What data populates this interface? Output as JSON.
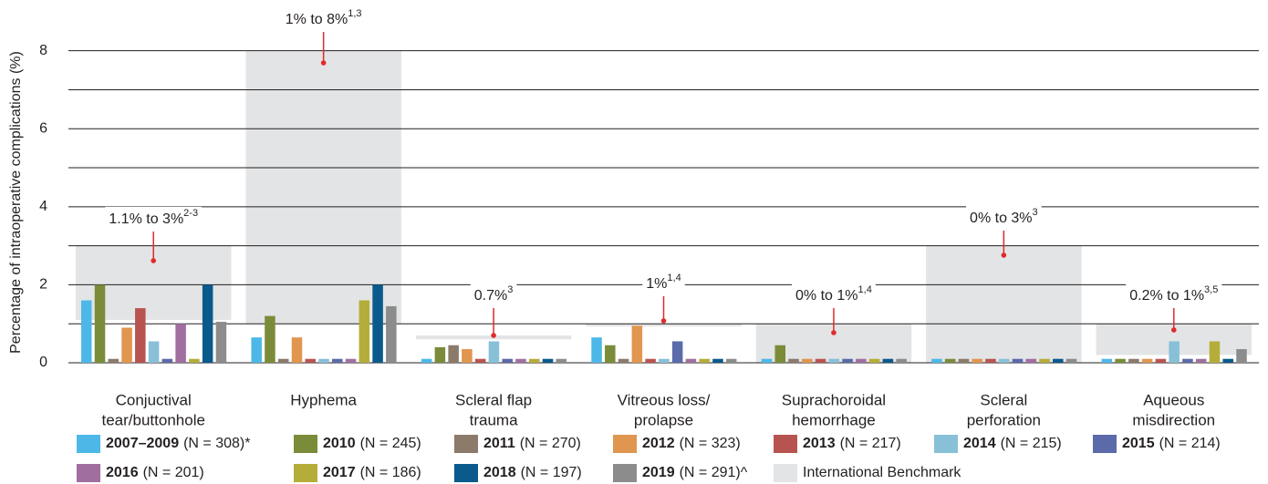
{
  "chart_data": {
    "type": "bar",
    "y_label": "Percentage of intraoperative complications (%)",
    "categories": [
      [
        "Conjuctival",
        "tear/buttonhole"
      ],
      [
        "Hyphema"
      ],
      [
        "Scleral flap",
        "trauma"
      ],
      [
        "Vitreous loss/",
        "prolapse"
      ],
      [
        "Suprachoroidal",
        "hemorrhage"
      ],
      [
        "Scleral",
        "perforation"
      ],
      [
        "Aqueous",
        "misdirection"
      ]
    ],
    "ylim": [
      0,
      8.6
    ],
    "yticks": [
      0,
      2,
      4,
      6,
      8
    ],
    "grid_lines": [
      0,
      1,
      2,
      3,
      4,
      5,
      6,
      7,
      8
    ],
    "grid": true,
    "benchmark": {
      "name": "International Benchmark",
      "color": "#e3e4e6",
      "low": [
        1.1,
        1,
        0.6,
        0.93,
        0,
        0,
        0.2
      ],
      "high": [
        3,
        8,
        0.7,
        1,
        1,
        3,
        1
      ],
      "labels": [
        "1.1% to 3%",
        "1% to 8%",
        "0.7%",
        "1%",
        "0% to 1%",
        "0% to 3%",
        "0.2% to 1%"
      ],
      "refs": [
        "2-3",
        "1,3",
        "3",
        "1,4",
        "1,4",
        "3",
        "3,5"
      ]
    },
    "series": [
      {
        "name": "2007–2009",
        "n_label": "(N = 308)*",
        "color": "#4db8e8",
        "values": [
          1.6,
          0.65,
          0.1,
          0.65,
          0.1,
          0.1,
          0.1
        ]
      },
      {
        "name": "2010",
        "n_label": "(N = 245)",
        "color": "#7a8c3a",
        "values": [
          2.0,
          1.2,
          0.4,
          0.45,
          0.45,
          0.1,
          0.1
        ]
      },
      {
        "name": "2011",
        "n_label": "(N = 270)",
        "color": "#8c7a6b",
        "values": [
          0.1,
          0.1,
          0.45,
          0.1,
          0.1,
          0.1,
          0.1
        ]
      },
      {
        "name": "2012",
        "n_label": "(N = 323)",
        "color": "#e0964e",
        "values": [
          0.9,
          0.65,
          0.35,
          0.95,
          0.1,
          0.1,
          0.1
        ]
      },
      {
        "name": "2013",
        "n_label": "(N = 217)",
        "color": "#b85450",
        "values": [
          1.4,
          0.1,
          0.1,
          0.1,
          0.1,
          0.1,
          0.1
        ]
      },
      {
        "name": "2014",
        "n_label": "(N = 215)",
        "color": "#88c0d8",
        "values": [
          0.55,
          0.1,
          0.55,
          0.1,
          0.1,
          0.1,
          0.55
        ]
      },
      {
        "name": "2015",
        "n_label": "(N = 214)",
        "color": "#5b6aa8",
        "values": [
          0.1,
          0.1,
          0.1,
          0.55,
          0.1,
          0.1,
          0.1
        ]
      },
      {
        "name": "2016",
        "n_label": "(N = 201)",
        "color": "#a06fa0",
        "values": [
          1.0,
          0.1,
          0.1,
          0.1,
          0.1,
          0.1,
          0.1
        ]
      },
      {
        "name": "2017",
        "n_label": "(N = 186)",
        "color": "#b5ad3a",
        "values": [
          0.1,
          1.6,
          0.1,
          0.1,
          0.1,
          0.1,
          0.55
        ]
      },
      {
        "name": "2018",
        "n_label": "(N = 197)",
        "color": "#0a5a8c",
        "values": [
          2.0,
          2.0,
          0.1,
          0.1,
          0.1,
          0.1,
          0.1
        ]
      },
      {
        "name": "2019",
        "n_label": "(N = 291)^",
        "color": "#8c8c8c",
        "values": [
          1.05,
          1.45,
          0.1,
          0.1,
          0.1,
          0.1,
          0.35
        ]
      }
    ]
  }
}
